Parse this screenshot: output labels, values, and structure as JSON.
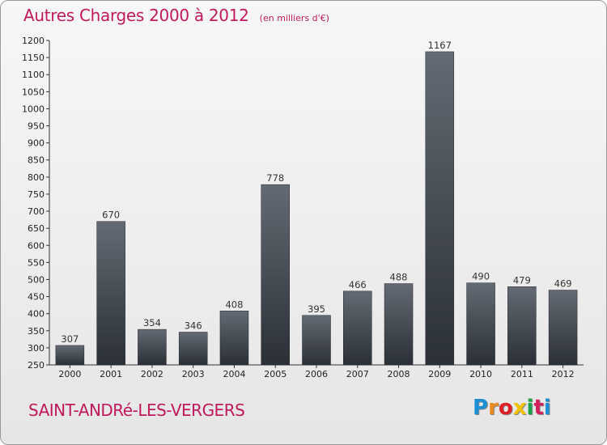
{
  "header": {
    "title": "Autres Charges 2000 à 2012",
    "unit": "(en milliers d'€)"
  },
  "footer": {
    "commune": "SAINT-ANDRé-LES-VERGERS",
    "logo": {
      "letters": [
        "P",
        "r",
        "o",
        "x",
        "i",
        "t",
        "i"
      ],
      "colors": [
        "#1a8fd6",
        "#e98a1c",
        "#e01f26",
        "#f2c200",
        "#1ba34a",
        "#d4205a",
        "#1a8fd6"
      ]
    }
  },
  "colors": {
    "accent": "#c0195c",
    "bar_top": "#646a73",
    "bar_bottom": "#2b3037"
  },
  "chart_data": {
    "type": "bar",
    "title": "Autres Charges 2000 à 2012",
    "subtitle": "(en milliers d'€)",
    "categories": [
      "2000",
      "2001",
      "2002",
      "2003",
      "2004",
      "2005",
      "2006",
      "2007",
      "2008",
      "2009",
      "2010",
      "2011",
      "2012"
    ],
    "values": [
      307,
      670,
      354,
      346,
      408,
      778,
      395,
      466,
      488,
      1167,
      490,
      479,
      469
    ],
    "ylim": [
      250,
      1200
    ],
    "yticks": [
      250,
      300,
      350,
      400,
      450,
      500,
      550,
      600,
      650,
      700,
      750,
      800,
      850,
      900,
      950,
      1000,
      1050,
      1100,
      1150,
      1200
    ],
    "xlabel": "",
    "ylabel": "",
    "grid": false,
    "legend": "none"
  }
}
